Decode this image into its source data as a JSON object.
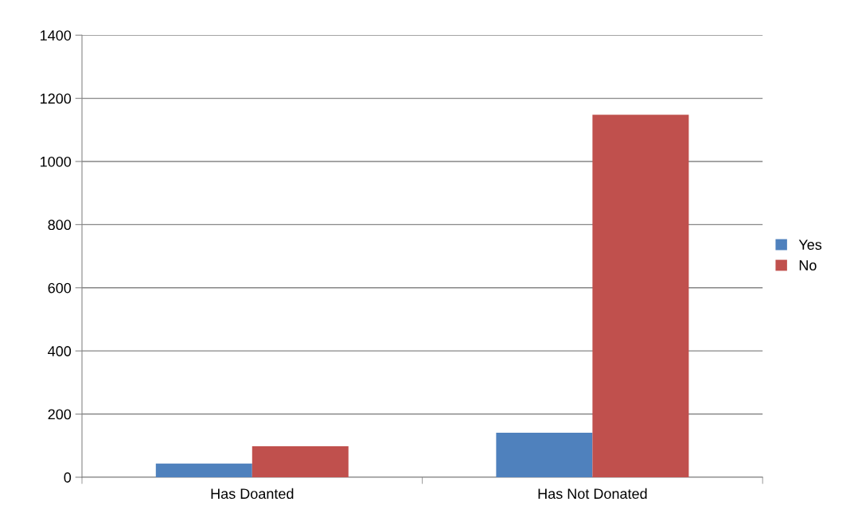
{
  "chart_data": {
    "type": "bar",
    "categories": [
      "Has Doanted",
      "Has Not Donated"
    ],
    "series": [
      {
        "name": "Yes",
        "color": "#4f81bd",
        "values": [
          43,
          141
        ]
      },
      {
        "name": "No",
        "color": "#c0504d",
        "values": [
          98,
          1148
        ]
      }
    ],
    "ylim": [
      0,
      1400
    ],
    "yticks": [
      0,
      200,
      400,
      600,
      800,
      1000,
      1200,
      1400
    ],
    "grid": "y",
    "legend": "right"
  }
}
